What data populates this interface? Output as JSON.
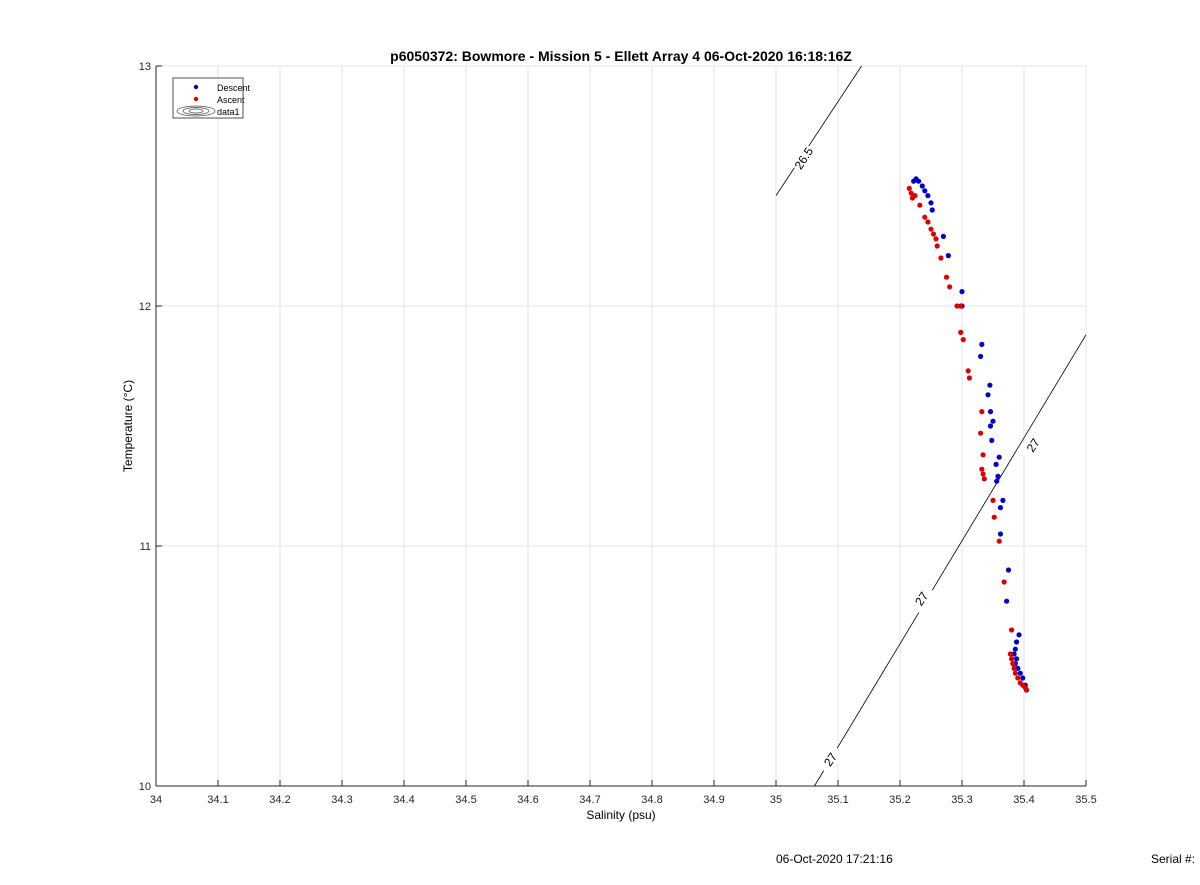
{
  "chart_data": {
    "type": "scatter",
    "title": "p6050372: Bowmore - Mission 5 - Ellett Array 4 06-Oct-2020 16:18:16Z",
    "xlabel": "Salinity (psu)",
    "ylabel": "Temperature (°C)",
    "xlim": [
      34,
      35.5
    ],
    "ylim": [
      10,
      13
    ],
    "xticks": [
      "34",
      "34.1",
      "34.2",
      "34.3",
      "34.4",
      "34.5",
      "34.6",
      "34.7",
      "34.8",
      "34.9",
      "35",
      "35.1",
      "35.2",
      "35.3",
      "35.4",
      "35.5"
    ],
    "yticks": [
      "10",
      "11",
      "12",
      "13"
    ],
    "grid": true,
    "legend_position": "top-left",
    "legend": [
      "Descent",
      "Ascent",
      "data1"
    ],
    "series": [
      {
        "name": "Descent",
        "color": "#0000cc",
        "points": [
          [
            35.222,
            12.52
          ],
          [
            35.226,
            12.53
          ],
          [
            35.23,
            12.52
          ],
          [
            35.236,
            12.5
          ],
          [
            35.24,
            12.48
          ],
          [
            35.245,
            12.46
          ],
          [
            35.25,
            12.43
          ],
          [
            35.252,
            12.4
          ],
          [
            35.27,
            12.29
          ],
          [
            35.278,
            12.21
          ],
          [
            35.3,
            12.06
          ],
          [
            35.3,
            12.0
          ],
          [
            35.332,
            11.84
          ],
          [
            35.33,
            11.79
          ],
          [
            35.345,
            11.67
          ],
          [
            35.342,
            11.63
          ],
          [
            35.346,
            11.56
          ],
          [
            35.35,
            11.52
          ],
          [
            35.346,
            11.5
          ],
          [
            35.348,
            11.44
          ],
          [
            35.36,
            11.37
          ],
          [
            35.355,
            11.34
          ],
          [
            35.358,
            11.29
          ],
          [
            35.356,
            11.27
          ],
          [
            35.366,
            11.19
          ],
          [
            35.362,
            11.16
          ],
          [
            35.362,
            11.05
          ],
          [
            35.375,
            10.9
          ],
          [
            35.372,
            10.77
          ],
          [
            35.392,
            10.63
          ],
          [
            35.388,
            10.6
          ],
          [
            35.386,
            10.57
          ],
          [
            35.384,
            10.55
          ],
          [
            35.388,
            10.53
          ],
          [
            35.386,
            10.51
          ],
          [
            35.39,
            10.49
          ],
          [
            35.394,
            10.47
          ],
          [
            35.398,
            10.45
          ],
          [
            35.402,
            10.42
          ],
          [
            35.404,
            10.4
          ]
        ]
      },
      {
        "name": "Ascent",
        "color": "#dd0000",
        "points": [
          [
            35.215,
            12.49
          ],
          [
            35.218,
            12.47
          ],
          [
            35.22,
            12.45
          ],
          [
            35.224,
            12.46
          ],
          [
            35.232,
            12.42
          ],
          [
            35.24,
            12.37
          ],
          [
            35.245,
            12.35
          ],
          [
            35.25,
            12.32
          ],
          [
            35.254,
            12.3
          ],
          [
            35.258,
            12.28
          ],
          [
            35.26,
            12.25
          ],
          [
            35.266,
            12.2
          ],
          [
            35.275,
            12.12
          ],
          [
            35.28,
            12.08
          ],
          [
            35.292,
            12.0
          ],
          [
            35.298,
            12.0
          ],
          [
            35.298,
            11.89
          ],
          [
            35.302,
            11.86
          ],
          [
            35.31,
            11.73
          ],
          [
            35.312,
            11.7
          ],
          [
            35.332,
            11.56
          ],
          [
            35.33,
            11.47
          ],
          [
            35.334,
            11.38
          ],
          [
            35.332,
            11.32
          ],
          [
            35.334,
            11.3
          ],
          [
            35.336,
            11.28
          ],
          [
            35.35,
            11.19
          ],
          [
            35.352,
            11.12
          ],
          [
            35.36,
            11.02
          ],
          [
            35.368,
            10.85
          ],
          [
            35.38,
            10.65
          ],
          [
            35.378,
            10.55
          ],
          [
            35.38,
            10.53
          ],
          [
            35.382,
            10.51
          ],
          [
            35.384,
            10.49
          ],
          [
            35.386,
            10.47
          ],
          [
            35.39,
            10.45
          ],
          [
            35.394,
            10.43
          ],
          [
            35.398,
            10.42
          ],
          [
            35.402,
            10.41
          ],
          [
            35.404,
            10.4
          ]
        ]
      }
    ],
    "contours": [
      {
        "label": "26.5",
        "points": [
          [
            35.0,
            12.46
          ],
          [
            35.138,
            13.0
          ]
        ],
        "labels": [
          {
            "text": "26.5",
            "at": [
              35.045,
              12.615
            ],
            "angle": -57
          }
        ]
      },
      {
        "label": "27",
        "points": [
          [
            35.062,
            10.0
          ],
          [
            35.5,
            11.88
          ]
        ],
        "labels": [
          {
            "text": "27",
            "at": [
              35.088,
              10.11
            ],
            "angle": -56
          },
          {
            "text": "27",
            "at": [
              35.235,
              10.78
            ],
            "angle": -56
          },
          {
            "text": "27",
            "at": [
              35.415,
              11.42
            ],
            "angle": -56
          }
        ]
      }
    ]
  },
  "footer": {
    "timestamp": "06-Oct-2020 17:21:16",
    "serial": "Serial #:"
  }
}
